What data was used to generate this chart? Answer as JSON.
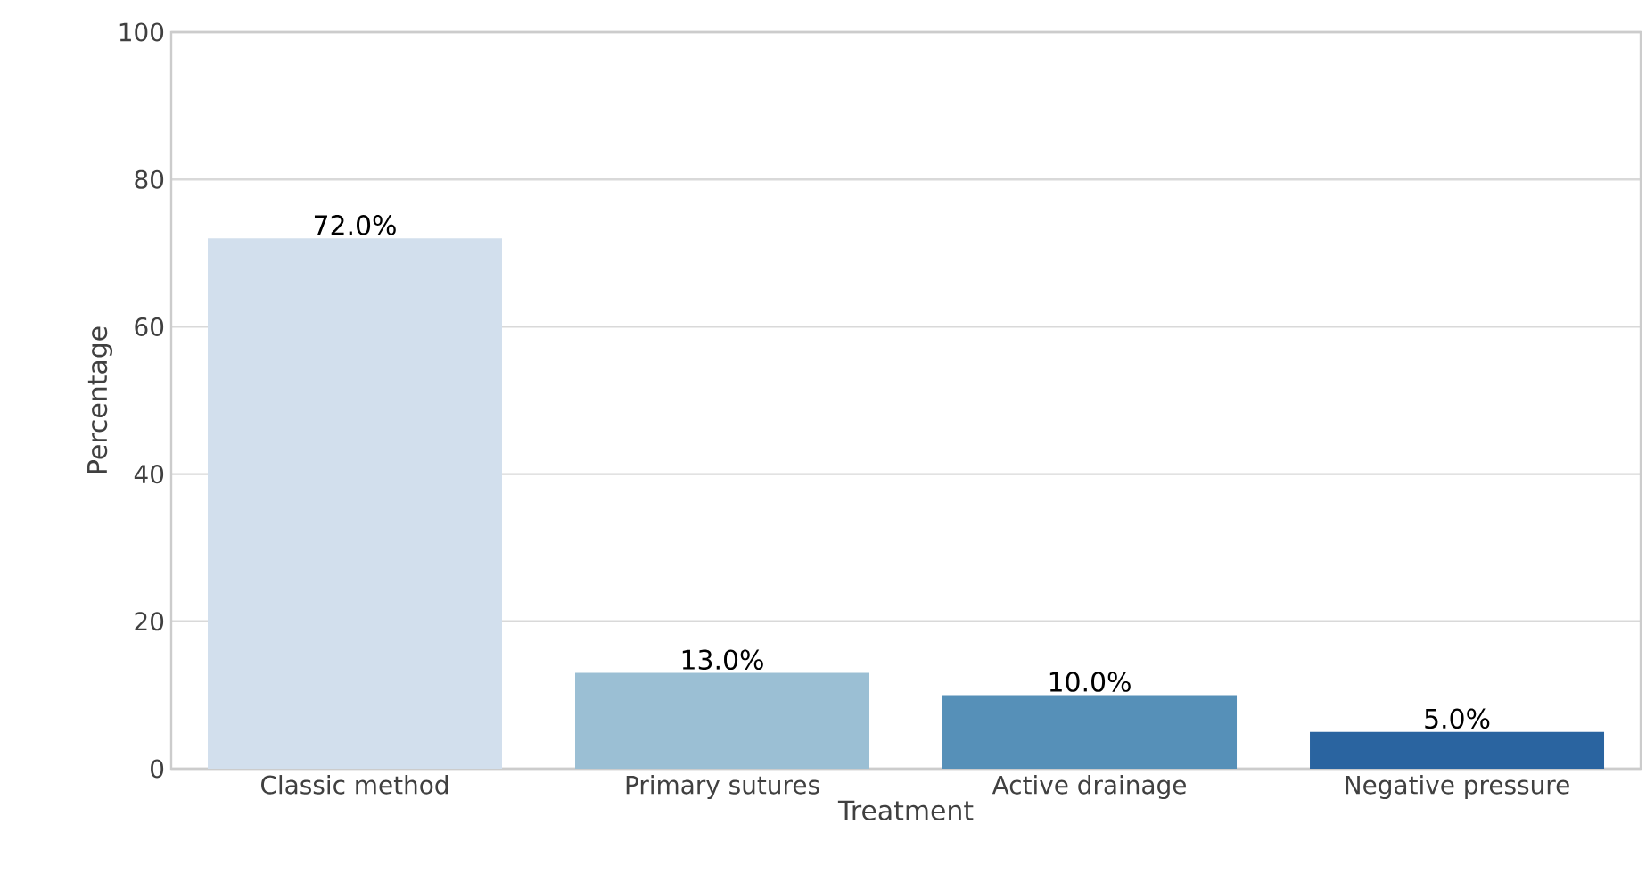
{
  "chart_data": {
    "type": "bar",
    "xlabel": "Treatment",
    "ylabel": "Percentage",
    "categories": [
      "Classic method",
      "Primary sutures",
      "Active drainage",
      "Negative pressure"
    ],
    "values": [
      72,
      13,
      10,
      5
    ],
    "colors": [
      "#d2dfed",
      "#9bbfd4",
      "#5690b8",
      "#2a64a0"
    ],
    "value_labels": [
      "72.0%",
      "13.0%",
      "10.0%",
      "5.0%"
    ],
    "ylim": [
      0,
      100
    ],
    "yticks": [
      0,
      20,
      40,
      60,
      80,
      100
    ],
    "grid": "y"
  }
}
